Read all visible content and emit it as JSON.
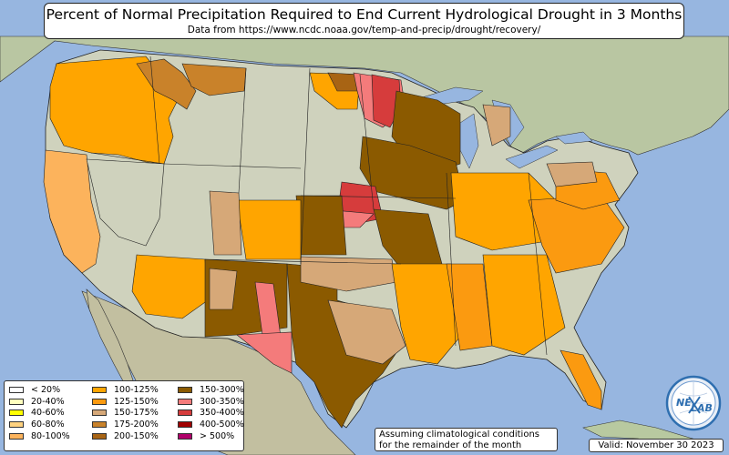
{
  "title": "Percent of Normal Precipitation Required to End Current Hydrological Drought in 3 Months",
  "subtitle": "Data from https://www.ncdc.noaa.gov/temp-and-precip/drought/recovery/",
  "legend": [
    {
      "label": "< 20%",
      "color": "#ffffff"
    },
    {
      "label": "20-40%",
      "color": "#ffffbe"
    },
    {
      "label": "40-60%",
      "color": "#ffff00"
    },
    {
      "label": "60-80%",
      "color": "#ffd27f"
    },
    {
      "label": "80-100%",
      "color": "#fcb35c"
    },
    {
      "label": "100-125%",
      "color": "#ffa500"
    },
    {
      "label": "125-150%",
      "color": "#fb9a10"
    },
    {
      "label": "150-175%",
      "color": "#d6a878"
    },
    {
      "label": "175-200%",
      "color": "#c9822a"
    },
    {
      "label": "200-150%",
      "color": "#a86414"
    },
    {
      "label": "150-300%",
      "color": "#8b5a00"
    },
    {
      "label": "300-350%",
      "color": "#f47b7b"
    },
    {
      "label": "350-400%",
      "color": "#d63c3c"
    },
    {
      "label": "400-500%",
      "color": "#a00000"
    },
    {
      "label": "> 500%",
      "color": "#b0006a"
    }
  ],
  "note_line1": "Assuming climatological conditions",
  "note_line2": "for the remainder of the month",
  "valid": "Valid: November 30 2023",
  "logo": {
    "text_a": "NE",
    "text_b": "LAB",
    "color": "#2f6fb0"
  },
  "colors": {
    "ocean": "#97b6e0",
    "land": "#c9ccb2",
    "land_green": "#b8c9a0",
    "border": "#222222"
  }
}
